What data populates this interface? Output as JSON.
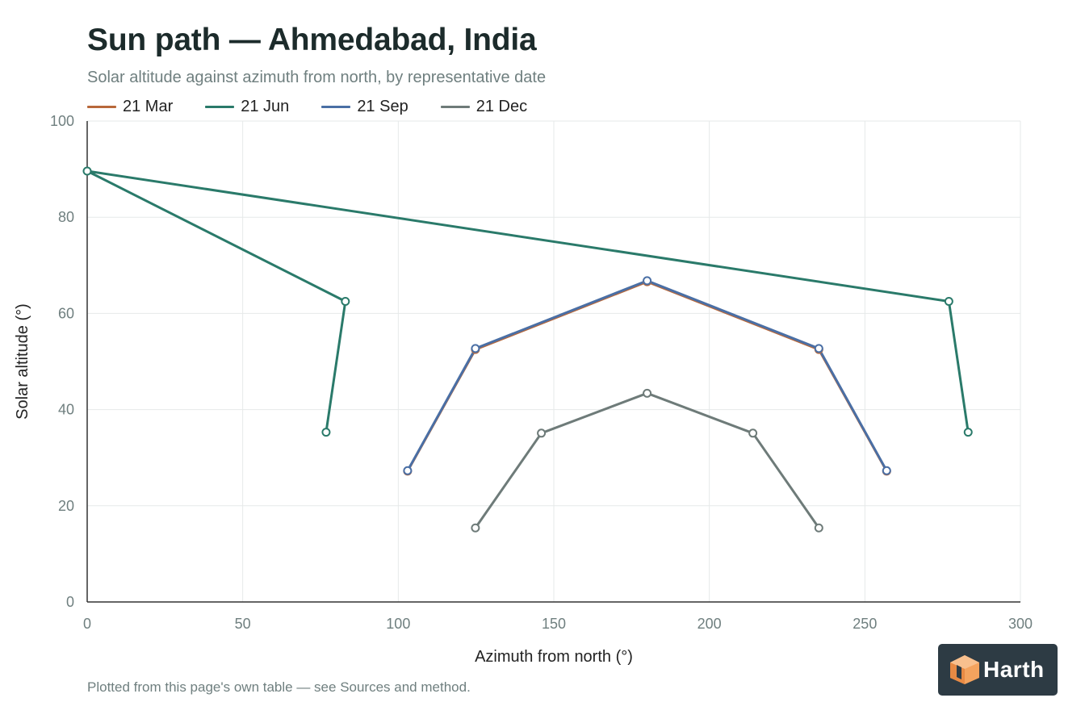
{
  "header": {
    "title": "Sun path — Ahmedabad, India",
    "subtitle": "Solar altitude against azimuth from north, by representative date"
  },
  "footnote": "Plotted from this page's own table — see Sources and method.",
  "logo": {
    "text": "Harth",
    "mark_icon": "cube-icon",
    "mark_color": "#f4a35e",
    "background": "#2d3b44"
  },
  "chart_data": {
    "type": "line",
    "xlabel": "Azimuth from north (°)",
    "ylabel": "Solar altitude (°)",
    "xlim": [
      0,
      300
    ],
    "ylim": [
      0,
      100
    ],
    "xticks": [
      "0",
      "50",
      "100",
      "150",
      "200",
      "250",
      "300"
    ],
    "yticks": [
      "0",
      "20",
      "40",
      "60",
      "80",
      "100"
    ],
    "grid": true,
    "legend_position": "top-left",
    "series": [
      {
        "name": "21 Mar",
        "color": "#b8683a",
        "x": [
          103,
          124.8,
          180,
          235.2,
          257
        ],
        "y": [
          27.2,
          52.5,
          66.6,
          52.5,
          27.2
        ]
      },
      {
        "name": "21 Jun",
        "color": "#2a7a6a",
        "x": [
          76.8,
          83,
          0,
          277,
          283.2
        ],
        "y": [
          35.3,
          62.5,
          89.6,
          62.5,
          35.3
        ]
      },
      {
        "name": "21 Sep",
        "color": "#4a6fa5",
        "x": [
          103,
          124.8,
          180,
          235.2,
          257
        ],
        "y": [
          27.3,
          52.7,
          66.8,
          52.7,
          27.3
        ]
      },
      {
        "name": "21 Dec",
        "color": "#6e7b79",
        "x": [
          124.8,
          146,
          180,
          214,
          235.2
        ],
        "y": [
          15.4,
          35.1,
          43.4,
          35.1,
          15.4
        ]
      }
    ]
  }
}
